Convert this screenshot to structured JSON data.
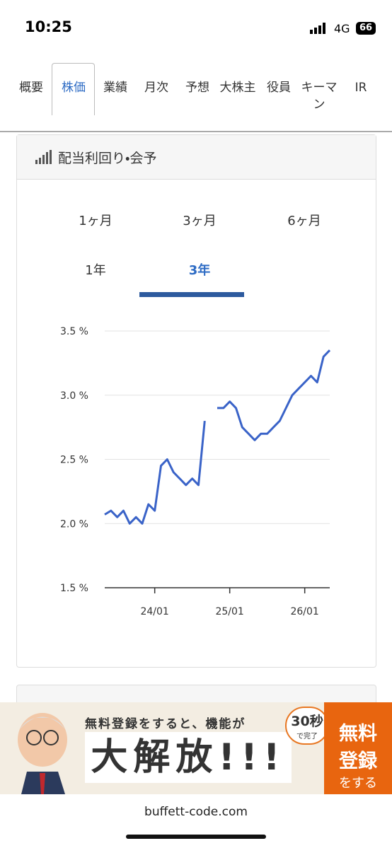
{
  "status_bar": {
    "time": "10:25",
    "network": "4G",
    "battery": "66"
  },
  "tabs": {
    "items": [
      "概要",
      "株価",
      "業績",
      "月次",
      "予想",
      "大株主",
      "役員",
      "キーマン",
      "IR"
    ],
    "selected": "株価"
  },
  "card": {
    "title": "配当利回り・会予",
    "periods": {
      "items": [
        "1ヶ月",
        "3ヶ月",
        "6ヶ月",
        "1年",
        "3年"
      ],
      "selected": "3年"
    }
  },
  "chart_data": {
    "type": "line",
    "color": "#3a63c8",
    "x": [
      "23/05",
      "23/06",
      "23/07",
      "23/08",
      "23/09",
      "23/10",
      "23/11",
      "23/12",
      "24/01",
      "24/02",
      "24/03",
      "24/04",
      "24/05",
      "24/06",
      "24/07",
      "24/08",
      "24/09",
      "24/10",
      "24/11",
      "24/12",
      "25/01",
      "25/02",
      "25/03",
      "25/04",
      "25/05",
      "25/06",
      "25/07",
      "25/08",
      "25/09",
      "25/10",
      "25/11",
      "25/12",
      "26/01",
      "26/02",
      "26/03",
      "26/04",
      "26/05"
    ],
    "values": [
      2.07,
      2.1,
      2.05,
      2.1,
      2.0,
      2.05,
      2.0,
      2.15,
      2.1,
      2.45,
      2.5,
      2.4,
      2.35,
      2.3,
      2.35,
      2.3,
      2.8,
      null,
      2.9,
      2.9,
      2.95,
      2.9,
      2.75,
      2.7,
      2.65,
      2.7,
      2.7,
      2.75,
      2.8,
      2.9,
      3.0,
      3.05,
      3.1,
      3.15,
      3.1,
      3.3,
      3.35
    ],
    "ylim": [
      1.5,
      3.5
    ],
    "yticks": [
      {
        "value": 1.5,
        "label": "1.5 %"
      },
      {
        "value": 2,
        "label": "2.0 %"
      },
      {
        "value": 2.5,
        "label": "2.5 %"
      },
      {
        "value": 3,
        "label": "3.0 %"
      },
      {
        "value": 3.5,
        "label": "3.5 %"
      }
    ],
    "grid": true
  },
  "banner": {
    "headline": "無料登録をすると、機能が",
    "main": "大解放!!!",
    "badge_number": "30秒",
    "badge_text": "で完了",
    "button": [
      "無料",
      "登録",
      "をする"
    ]
  },
  "footer": {
    "url": "buffett-code.com"
  }
}
